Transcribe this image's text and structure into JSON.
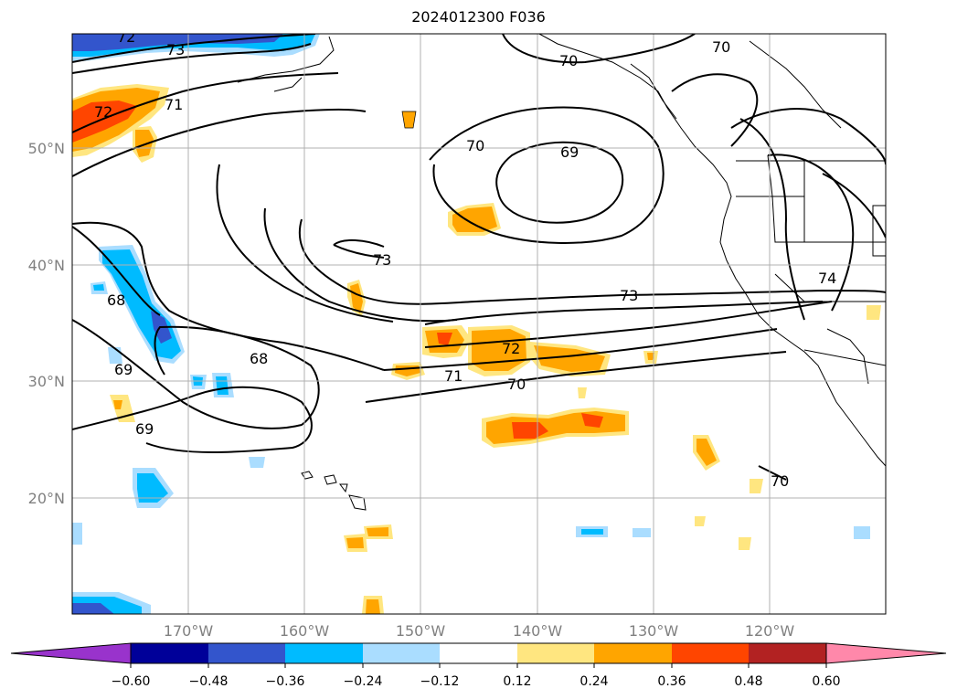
{
  "title": "2024012300 F036",
  "map": {
    "lat_labels": [
      "50°N",
      "40°N",
      "30°N",
      "20°N"
    ],
    "lon_labels": [
      "170°W",
      "160°W",
      "150°W",
      "140°W",
      "130°W",
      "120°W"
    ],
    "contour_labels": [
      {
        "text": "72"
      },
      {
        "text": "73"
      },
      {
        "text": "70"
      },
      {
        "text": "70"
      },
      {
        "text": "72"
      },
      {
        "text": "71"
      },
      {
        "text": "70"
      },
      {
        "text": "69"
      },
      {
        "text": "73"
      },
      {
        "text": "68"
      },
      {
        "text": "73"
      },
      {
        "text": "74"
      },
      {
        "text": "68"
      },
      {
        "text": "72"
      },
      {
        "text": "69"
      },
      {
        "text": "71"
      },
      {
        "text": "70"
      },
      {
        "text": "69"
      },
      {
        "text": "70"
      }
    ]
  },
  "colorbar": {
    "ticks": [
      "−0.60",
      "−0.48",
      "−0.36",
      "−0.24",
      "−0.12",
      "0.12",
      "0.24",
      "0.36",
      "0.48",
      "0.60"
    ],
    "colors": [
      "#9933cc",
      "#000099",
      "#3355cc",
      "#00bbff",
      "#aaddff",
      "#ffffff",
      "#ffe680",
      "#ffa500",
      "#ff4500",
      "#b22222",
      "#ff88aa"
    ]
  }
}
